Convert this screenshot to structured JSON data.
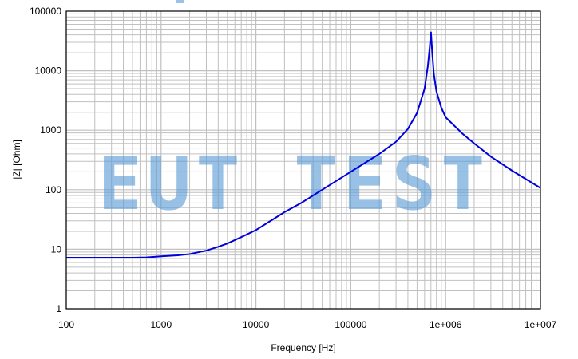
{
  "chart_data": {
    "type": "line",
    "title": "",
    "xlabel": "Frequency [Hz]",
    "ylabel": "|Z| [Ohm]",
    "xscale": "log",
    "yscale": "log",
    "xlim": [
      100,
      10000000
    ],
    "ylim": [
      1,
      100000
    ],
    "x_ticks": [
      100,
      1000,
      10000,
      100000,
      1000000,
      10000000
    ],
    "x_tick_labels": [
      "100",
      "1000",
      "10000",
      "100000",
      "1e+006",
      "1e+007"
    ],
    "y_ticks": [
      1,
      10,
      100,
      1000,
      10000,
      100000
    ],
    "y_tick_labels": [
      "1",
      "10",
      "100",
      "1000",
      "10000",
      "100000"
    ],
    "grid": true,
    "legend_position": "top",
    "series": [
      {
        "name": "",
        "color": "#0000dd",
        "x": [
          100,
          200,
          500,
          700,
          1000,
          1500,
          2000,
          3000,
          4000,
          5000,
          7000,
          10000,
          20000,
          30000,
          50000,
          100000,
          200000,
          300000,
          400000,
          500000,
          600000,
          650000,
          680000,
          700000,
          720000,
          750000,
          800000,
          900000,
          1000000,
          1500000,
          2000000,
          3000000,
          5000000,
          10000000
        ],
        "y": [
          7.2,
          7.2,
          7.2,
          7.3,
          7.6,
          7.9,
          8.3,
          9.5,
          11,
          12.5,
          16,
          21,
          42,
          60,
          100,
          200,
          400,
          640,
          1050,
          1950,
          5000,
          12000,
          25000,
          45000,
          22000,
          9000,
          4500,
          2400,
          1650,
          880,
          600,
          360,
          210,
          107
        ]
      }
    ],
    "legend": {
      "visible_text": ""
    }
  },
  "watermark": {
    "text": "EUT TEST"
  },
  "colors": {
    "line": "#0000dd",
    "grid": "#c0c0c0",
    "frame": "#000000",
    "watermark": "#5b9bd5",
    "legend_swatch": "#9cc3e5"
  }
}
